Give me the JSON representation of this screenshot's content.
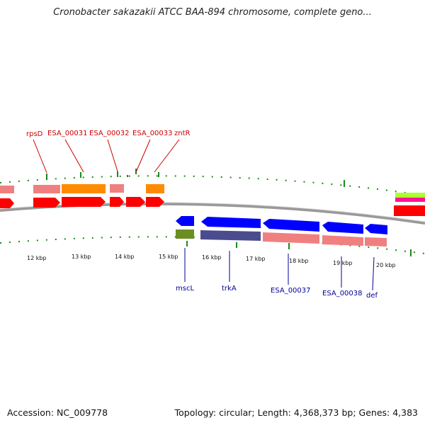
{
  "title": "Cronobacter sakazakii ATCC BAA-894 chromosome, complete geno...",
  "footer": {
    "accession": "Accession: NC_009778",
    "topology": "Topology: circular; Length: 4,368,373 bp; Genes: 4,383"
  },
  "colors": {
    "forward_label": "#cc0000",
    "reverse_label": "#000099",
    "cds_forward": "#ff0000",
    "cds_reverse": "#0000ff",
    "gene_pink": "#f08080",
    "gene_orange": "#ff8c00",
    "gene_olive": "#6b8e23",
    "gene_purple": "#4b4b8f",
    "gene_lime": "#adff2f",
    "gene_magenta": "#ff1493",
    "tick": "#1a8a1a",
    "backbone": "#888888"
  },
  "ticks": [
    {
      "label": "12 kbp"
    },
    {
      "label": "13 kbp"
    },
    {
      "label": "14 kbp"
    },
    {
      "label": "15 kbp"
    },
    {
      "label": "16 kbp"
    },
    {
      "label": "17 kbp"
    },
    {
      "label": "18 kbp"
    },
    {
      "label": "19 kbp"
    },
    {
      "label": "20 kbp"
    }
  ],
  "forward_labels": [
    {
      "name": "rpsD"
    },
    {
      "name": "ESA_00031"
    },
    {
      "name": "ESA_00032"
    },
    {
      "name": "ESA_00033"
    },
    {
      "name": "zntR"
    }
  ],
  "reverse_labels": [
    {
      "name": "mscL"
    },
    {
      "name": "trkA"
    },
    {
      "name": "ESA_00037"
    },
    {
      "name": "ESA_00038"
    },
    {
      "name": "def"
    }
  ]
}
